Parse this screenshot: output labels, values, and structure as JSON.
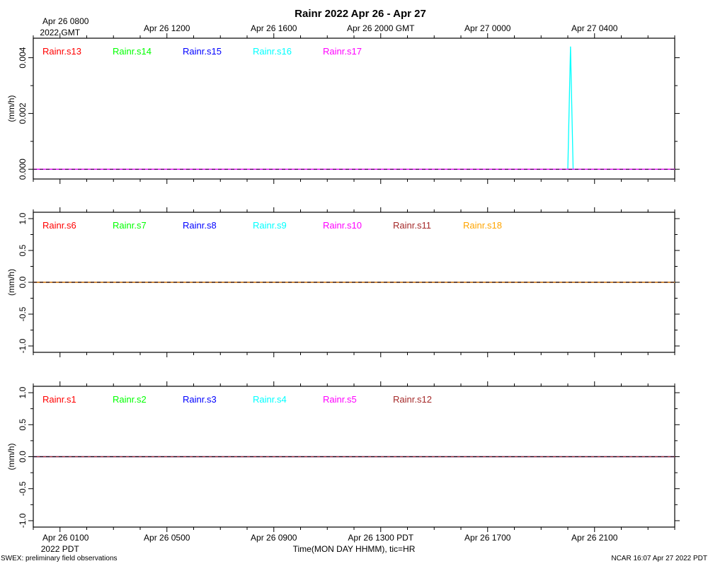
{
  "title": "Rainr 2022 Apr 26 - Apr 27",
  "top_axis": {
    "first_label_line1": "Apr 26 0800",
    "first_label_line2": "2022 GMT",
    "ticks": [
      {
        "hour": 0,
        "label": "Apr 26 0800"
      },
      {
        "hour": 4,
        "label": "Apr 26 1200"
      },
      {
        "hour": 8,
        "label": "Apr 26 1600"
      },
      {
        "hour": 12,
        "label": "Apr 26 2000 GMT"
      },
      {
        "hour": 16,
        "label": "Apr 27 0000"
      },
      {
        "hour": 20,
        "label": "Apr 27 0400"
      }
    ]
  },
  "bottom_axis": {
    "first_label_line1": "Apr 26 0100",
    "first_label_line2": "2022 PDT",
    "ticks": [
      {
        "hour": 0,
        "label": "Apr 26 0100"
      },
      {
        "hour": 4,
        "label": "Apr 26 0500"
      },
      {
        "hour": 8,
        "label": "Apr 26 0900"
      },
      {
        "hour": 12,
        "label": "Apr 26 1300 PDT"
      },
      {
        "hour": 16,
        "label": "Apr 26 1700"
      },
      {
        "hour": 20,
        "label": "Apr 26 2100"
      }
    ],
    "xlabel": "Time(MON DAY HHMM), tic=HR"
  },
  "footer": {
    "left": "SWEX: preliminary field observations",
    "right": "NCAR 16:07 Apr 27 2022 PDT"
  },
  "chart_data": [
    {
      "type": "line",
      "panel": "top",
      "ylabel": "(mm/h)",
      "ylim": [
        -0.00035,
        0.0047
      ],
      "yticks": [
        0.0,
        0.002,
        0.004
      ],
      "ytick_labels": [
        "0.000",
        "0.002",
        "0.004"
      ],
      "xlim_hours": [
        -1,
        23
      ],
      "series": [
        {
          "name": "Rainr.s13",
          "color": "#ff0000",
          "x": [
            -1,
            23
          ],
          "y": [
            0,
            0
          ]
        },
        {
          "name": "Rainr.s14",
          "color": "#00ff00",
          "x": [
            -1,
            23
          ],
          "y": [
            0,
            0
          ]
        },
        {
          "name": "Rainr.s15",
          "color": "#0000ff",
          "x": [
            -1,
            23
          ],
          "y": [
            0,
            0
          ]
        },
        {
          "name": "Rainr.s16",
          "color": "#00ffff",
          "x": [
            -1,
            19.0,
            19.1,
            19.2,
            23
          ],
          "y": [
            0,
            0,
            0.0044,
            0,
            0
          ]
        },
        {
          "name": "Rainr.s17",
          "color": "#ff00ff",
          "x": [
            -1,
            23
          ],
          "y": [
            0,
            0
          ]
        }
      ]
    },
    {
      "type": "line",
      "panel": "middle",
      "ylabel": "(mm/h)",
      "ylim": [
        -1.1,
        1.1
      ],
      "yticks": [
        -1.0,
        -0.5,
        0.0,
        0.5,
        1.0
      ],
      "ytick_labels": [
        "-1.0",
        "-0.5",
        "0.0",
        "0.5",
        "1.0"
      ],
      "xlim_hours": [
        -1,
        23
      ],
      "series": [
        {
          "name": "Rainr.s6",
          "color": "#ff0000",
          "x": [
            -1,
            23
          ],
          "y": [
            0,
            0
          ]
        },
        {
          "name": "Rainr.s7",
          "color": "#00ff00",
          "x": [
            -1,
            23
          ],
          "y": [
            0,
            0
          ]
        },
        {
          "name": "Rainr.s8",
          "color": "#0000ff",
          "x": [
            -1,
            23
          ],
          "y": [
            0,
            0
          ]
        },
        {
          "name": "Rainr.s9",
          "color": "#00ffff",
          "x": [
            -1,
            23
          ],
          "y": [
            0,
            0
          ]
        },
        {
          "name": "Rainr.s10",
          "color": "#ff00ff",
          "x": [
            -1,
            23
          ],
          "y": [
            0,
            0
          ]
        },
        {
          "name": "Rainr.s11",
          "color": "#a52a2a",
          "x": [
            -1,
            23
          ],
          "y": [
            0,
            0
          ]
        },
        {
          "name": "Rainr.s18",
          "color": "#ffa500",
          "x": [
            -1,
            23
          ],
          "y": [
            0,
            0
          ]
        }
      ]
    },
    {
      "type": "line",
      "panel": "bottom",
      "ylabel": "(mm/h)",
      "ylim": [
        -1.1,
        1.1
      ],
      "yticks": [
        -1.0,
        -0.5,
        0.0,
        0.5,
        1.0
      ],
      "ytick_labels": [
        "-1.0",
        "-0.5",
        "0.0",
        "0.5",
        "1.0"
      ],
      "xlim_hours": [
        -1,
        23
      ],
      "series": [
        {
          "name": "Rainr.s1",
          "color": "#ff0000",
          "x": [
            -1,
            23
          ],
          "y": [
            0,
            0
          ]
        },
        {
          "name": "Rainr.s2",
          "color": "#00ff00",
          "x": [
            -1,
            23
          ],
          "y": [
            0,
            0
          ]
        },
        {
          "name": "Rainr.s3",
          "color": "#0000ff",
          "x": [
            -1,
            23
          ],
          "y": [
            0,
            0
          ]
        },
        {
          "name": "Rainr.s4",
          "color": "#00ffff",
          "x": [
            -1,
            23
          ],
          "y": [
            0,
            0
          ]
        },
        {
          "name": "Rainr.s5",
          "color": "#ff00ff",
          "x": [
            -1,
            23
          ],
          "y": [
            0,
            0
          ]
        },
        {
          "name": "Rainr.s12",
          "color": "#a52a2a",
          "x": [
            -1,
            23
          ],
          "y": [
            0,
            0
          ]
        }
      ]
    }
  ]
}
